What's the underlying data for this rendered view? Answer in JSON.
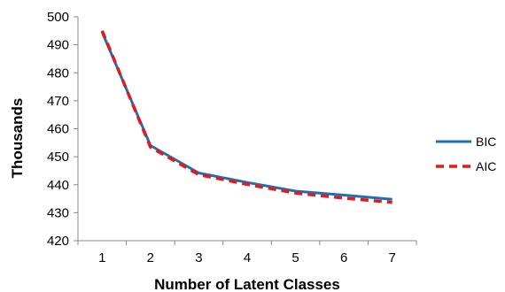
{
  "chart_data": {
    "type": "line",
    "title": "",
    "xlabel": "Number of Latent Classes",
    "ylabel": "Thousands",
    "x": [
      1,
      2,
      3,
      4,
      5,
      6,
      7
    ],
    "ylim": [
      420,
      500
    ],
    "yticks": [
      420,
      430,
      440,
      450,
      460,
      470,
      480,
      490,
      500
    ],
    "grid": false,
    "legend_position": "right",
    "series": [
      {
        "name": "BIC",
        "values": [
          494.5,
          454.0,
          444.2,
          440.8,
          437.7,
          436.3,
          434.8
        ],
        "color": "#1f6fb7",
        "style": "solid"
      },
      {
        "name": "AIC",
        "values": [
          495.0,
          453.4,
          443.6,
          440.1,
          437.0,
          435.2,
          433.7
        ],
        "color": "#e31a1c",
        "style": "dashed"
      }
    ]
  }
}
